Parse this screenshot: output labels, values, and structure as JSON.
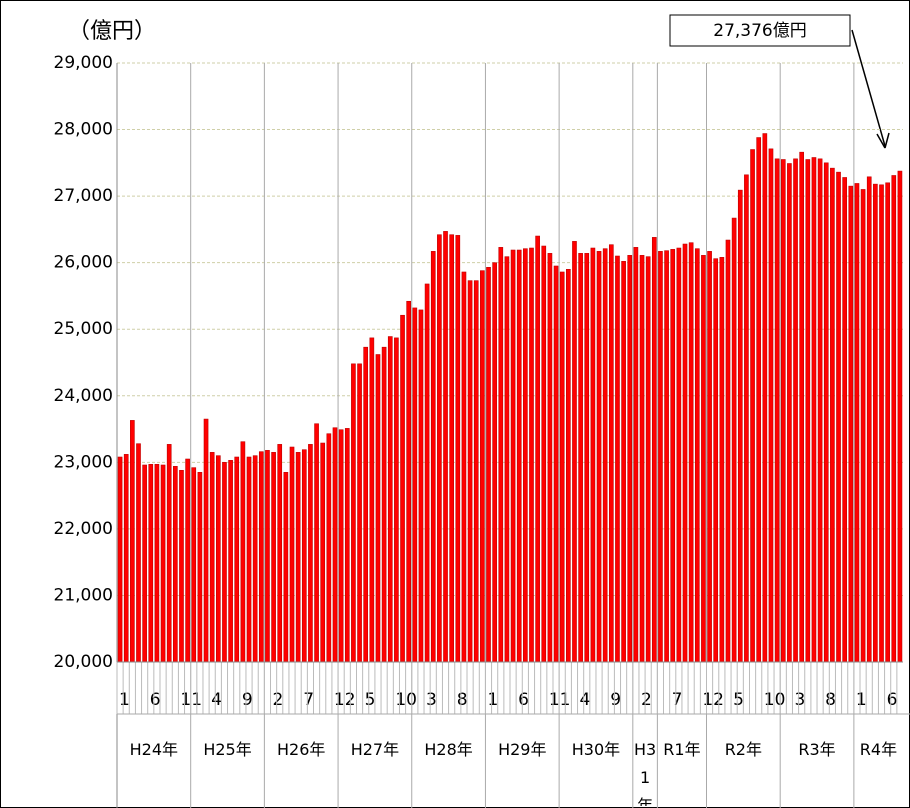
{
  "chart_data": {
    "type": "bar",
    "y_unit_label": "（億円）",
    "annotation": "27,376億円",
    "color": "#ff0000",
    "ylim": [
      20000,
      29000
    ],
    "yticks": [
      {
        "value": 20000,
        "label": "20,000"
      },
      {
        "value": 21000,
        "label": "21,000"
      },
      {
        "value": 22000,
        "label": "22,000"
      },
      {
        "value": 23000,
        "label": "23,000"
      },
      {
        "value": 24000,
        "label": "24,000"
      },
      {
        "value": 25000,
        "label": "25,000"
      },
      {
        "value": 26000,
        "label": "26,000"
      },
      {
        "value": 27000,
        "label": "27,000"
      },
      {
        "value": 28000,
        "label": "28,000"
      },
      {
        "value": 29000,
        "label": "29,000"
      }
    ],
    "grid": true,
    "categories": [
      "1",
      null,
      null,
      null,
      null,
      "6",
      null,
      null,
      null,
      null,
      "11",
      null,
      null,
      null,
      null,
      "4",
      null,
      null,
      null,
      null,
      "9",
      null,
      null,
      null,
      null,
      "2",
      null,
      null,
      null,
      null,
      "7",
      null,
      null,
      null,
      null,
      "12",
      null,
      null,
      null,
      null,
      "5",
      null,
      null,
      null,
      null,
      "10",
      null,
      null,
      null,
      null,
      "3",
      null,
      null,
      null,
      null,
      "8",
      null,
      null,
      null,
      null,
      "1",
      null,
      null,
      null,
      null,
      "6",
      null,
      null,
      null,
      null,
      "11",
      null,
      null,
      null,
      null,
      "4",
      null,
      null,
      null,
      null,
      "9",
      null,
      null,
      null,
      null,
      "2",
      null,
      null,
      null,
      null,
      "7",
      null,
      null,
      null,
      null,
      "12",
      null,
      null,
      null,
      null,
      "5",
      null,
      null,
      null,
      null,
      "10",
      null,
      null,
      null,
      null,
      "3",
      null,
      null,
      null,
      null,
      "8",
      null,
      null,
      null,
      null,
      "1",
      null,
      null,
      null,
      null,
      "6",
      null,
      null
    ],
    "values": [
      23080,
      23120,
      23630,
      23280,
      22960,
      22970,
      22970,
      22960,
      23270,
      22940,
      22880,
      23050,
      22920,
      22850,
      23650,
      23150,
      23100,
      23000,
      23030,
      23080,
      23310,
      23080,
      23100,
      23160,
      23180,
      23150,
      23270,
      22850,
      23230,
      23150,
      23190,
      23270,
      23580,
      23290,
      23430,
      23520,
      23490,
      23510,
      24480,
      24480,
      24730,
      24870,
      24620,
      24730,
      24890,
      24870,
      25210,
      25420,
      25320,
      25290,
      25680,
      26170,
      26420,
      26470,
      26420,
      26410,
      25860,
      25730,
      25730,
      25880,
      25930,
      26000,
      26230,
      26090,
      26190,
      26190,
      26210,
      26220,
      26400,
      26250,
      26140,
      25950,
      25860,
      25900,
      26320,
      26140,
      26140,
      26220,
      26170,
      26210,
      26270,
      26100,
      26020,
      26110,
      26230,
      26110,
      26090,
      26380,
      26170,
      26180,
      26200,
      26220,
      26280,
      26300,
      26210,
      26110,
      26170,
      26060,
      26080,
      26340,
      26670,
      27090,
      27320,
      27700,
      27880,
      27940,
      27710,
      27560,
      27550,
      27490,
      27560,
      27660,
      27550,
      27580,
      27560,
      27500,
      27420,
      27360,
      27280,
      27150,
      27190,
      27100,
      27290,
      27180,
      27170,
      27200,
      27310,
      27376
    ],
    "periods": [
      {
        "label": "H24年",
        "months": 12
      },
      {
        "label": "H25年",
        "months": 12
      },
      {
        "label": "H26年",
        "months": 12
      },
      {
        "label": "H27年",
        "months": 12
      },
      {
        "label": "H28年",
        "months": 12
      },
      {
        "label": "H29年",
        "months": 12
      },
      {
        "label": "H30年",
        "months": 12
      },
      {
        "label": "H31年",
        "months": 4
      },
      {
        "label": "R1年",
        "months": 8
      },
      {
        "label": "R2年",
        "months": 12
      },
      {
        "label": "R3年",
        "months": 12
      },
      {
        "label": "R4年",
        "months": 8
      }
    ]
  }
}
